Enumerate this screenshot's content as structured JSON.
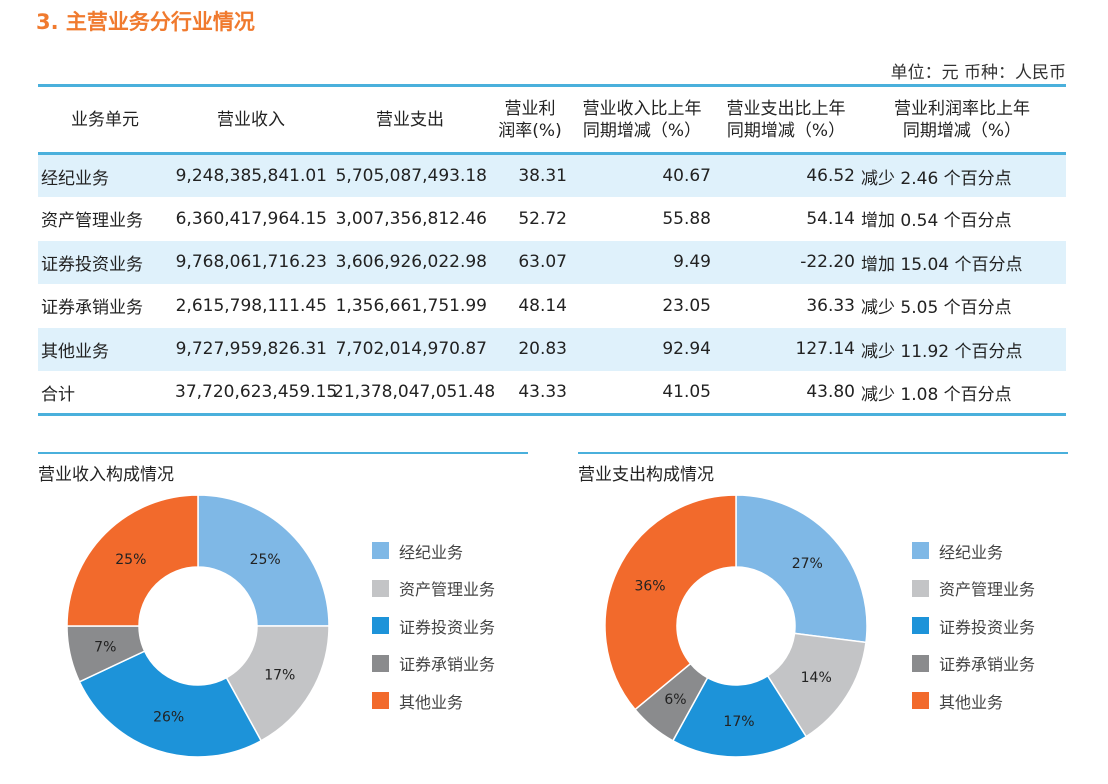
{
  "title": "3. 主营业务分行业情况",
  "unit_note": "单位：元  币种：人民币",
  "table": {
    "headers": [
      "业务单元",
      "营业收入",
      "营业支出",
      "营业利\n润率(%)",
      "营业收入比上年\n同期增减（%）",
      "营业支出比上年\n同期增减（%）",
      "营业利润率比上年\n同期增减（%）"
    ],
    "rows": [
      [
        "经纪业务",
        "9,248,385,841.01",
        "5,705,087,493.18",
        "38.31",
        "40.67",
        "46.52",
        "减少 2.46 个百分点"
      ],
      [
        "资产管理业务",
        "6,360,417,964.15",
        "3,007,356,812.46",
        "52.72",
        "55.88",
        "54.14",
        "增加 0.54 个百分点"
      ],
      [
        "证券投资业务",
        "9,768,061,716.23",
        "3,606,926,022.98",
        "63.07",
        "9.49",
        "-22.20",
        "增加 15.04 个百分点"
      ],
      [
        "证券承销业务",
        "2,615,798,111.45",
        "1,356,661,751.99",
        "48.14",
        "23.05",
        "36.33",
        "减少 5.05 个百分点"
      ],
      [
        "其他业务",
        "9,727,959,826.31",
        "7,702,014,970.87",
        "20.83",
        "92.94",
        "127.14",
        "减少 11.92 个百分点"
      ],
      [
        "合计",
        "37,720,623,459.15",
        "21,378,047,051.48",
        "43.33",
        "41.05",
        "43.80",
        "减少 1.08 个百分点"
      ]
    ]
  },
  "colors": {
    "经纪业务": "#7fb8e6",
    "资产管理业务": "#c3c4c6",
    "证券投资业务": "#1d93d9",
    "证券承销业务": "#8a8b8d",
    "其他业务": "#f26a2c"
  },
  "chart_data": [
    {
      "type": "pie",
      "title": "营业收入构成情况",
      "categories": [
        "经纪业务",
        "资产管理业务",
        "证券投资业务",
        "证券承销业务",
        "其他业务"
      ],
      "values": [
        25,
        17,
        26,
        7,
        25
      ],
      "labels": [
        "25%",
        "17%",
        "26%",
        "7%",
        "25%"
      ],
      "legend_position": "right"
    },
    {
      "type": "pie",
      "title": "营业支出构成情况",
      "categories": [
        "经纪业务",
        "资产管理业务",
        "证券投资业务",
        "证券承销业务",
        "其他业务"
      ],
      "values": [
        27,
        14,
        17,
        6,
        36
      ],
      "labels": [
        "27%",
        "14%",
        "17%",
        "6%",
        "36%"
      ],
      "legend_position": "right"
    }
  ]
}
